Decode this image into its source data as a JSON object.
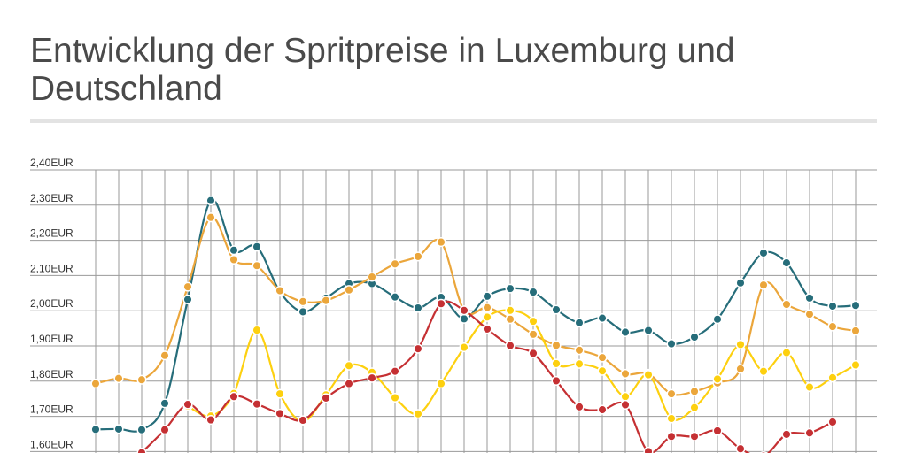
{
  "title": "Entwicklung der Spritpreise in Luxemburg und Deutschland",
  "chart_data": {
    "type": "line",
    "title": "Entwicklung der Spritpreise in Luxemburg und Deutschland",
    "xlabel": "",
    "ylabel": "",
    "ylim": [
      1.6,
      2.4
    ],
    "y_ticks": [
      "2,40EUR",
      "2,30EUR",
      "2,20EUR",
      "2,10EUR",
      "2,00EUR",
      "1,90EUR",
      "1,80EUR",
      "1,70EUR",
      "1,60EUR"
    ],
    "grid": true,
    "legend": "none",
    "series": [
      {
        "color": "#266d7a",
        "values": [
          1.663,
          1.664,
          1.662,
          1.737,
          2.032,
          2.313,
          2.172,
          2.182,
          2.054,
          1.997,
          2.036,
          2.077,
          2.077,
          2.039,
          2.008,
          2.038,
          1.977,
          2.041,
          2.063,
          2.053,
          2.003,
          1.966,
          1.979,
          1.939,
          1.944,
          1.906,
          1.925,
          1.976,
          2.079,
          2.164,
          2.136,
          2.036,
          2.013,
          2.015
        ]
      },
      {
        "color": "#eba63b",
        "values": [
          1.793,
          1.808,
          1.804,
          1.873,
          2.068,
          2.265,
          2.145,
          2.128,
          2.057,
          2.026,
          2.029,
          2.059,
          2.096,
          2.133,
          2.154,
          2.195,
          2.001,
          2.009,
          1.976,
          1.933,
          1.902,
          1.888,
          1.867,
          1.821,
          1.821,
          1.764,
          1.771,
          1.795,
          1.835,
          2.073,
          2.018,
          1.99,
          1.955,
          1.943
        ]
      },
      {
        "color": "#fdd00f",
        "values": [
          null,
          null,
          null,
          null,
          1.729,
          1.701,
          1.765,
          1.945,
          1.764,
          1.686,
          1.761,
          1.844,
          1.825,
          1.753,
          1.707,
          1.793,
          1.896,
          1.982,
          2.001,
          1.97,
          1.85,
          1.849,
          1.829,
          1.756,
          1.818,
          1.694,
          1.725,
          1.806,
          1.904,
          1.828,
          1.881,
          1.783,
          1.81,
          1.846
        ]
      },
      {
        "color": "#c53033",
        "values": [
          null,
          null,
          1.597,
          1.662,
          1.734,
          1.69,
          1.756,
          1.735,
          1.708,
          1.689,
          1.752,
          1.793,
          1.809,
          1.828,
          1.892,
          2.02,
          2.001,
          1.948,
          1.901,
          1.879,
          1.801,
          1.727,
          1.719,
          1.733,
          1.6,
          1.643,
          1.643,
          1.659,
          1.608,
          1.587,
          1.649,
          1.653,
          1.684
        ]
      }
    ]
  }
}
